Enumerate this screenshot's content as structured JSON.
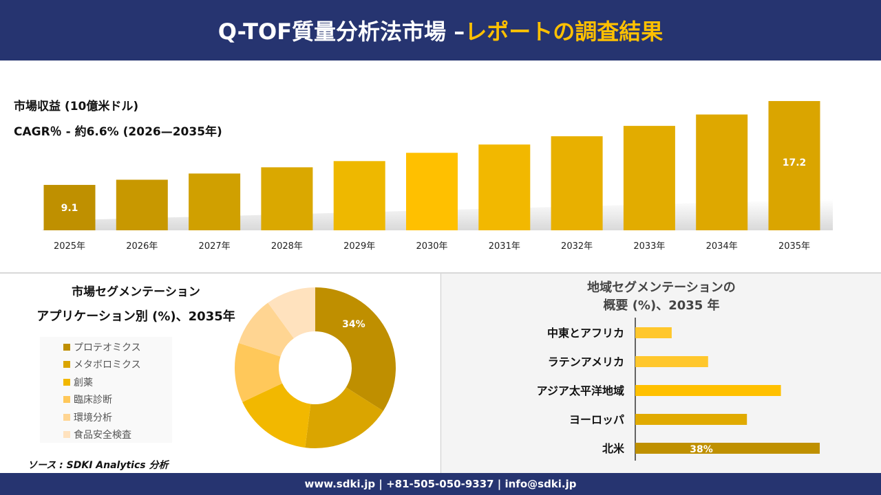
{
  "header": {
    "title_main": "Q-TOF質量分析法市場 –",
    "title_accent": "レポートの調査結果"
  },
  "revenue": {
    "label": "市場収益 (10億米ドル)",
    "cagr": "CAGR％ - 約6.6% (2026—2035年)"
  },
  "segment": {
    "title1": "市場セグメンテーション",
    "title2": "アプリケーション別 (%)、2035年"
  },
  "region": {
    "title1": "地域セグメンテーションの",
    "title2": "概要 (%)、2035 年"
  },
  "source": "ソース : SDKI Analytics 分析",
  "footer": "www.sdki.jp | +81-505-050-9337 | info@sdki.jp",
  "chart_data": [
    {
      "type": "bar",
      "categories": [
        "2025年",
        "2026年",
        "2027年",
        "2028年",
        "2029年",
        "2030年",
        "2031年",
        "2032年",
        "2033年",
        "2034年",
        "2035年"
      ],
      "values": [
        9.1,
        9.6,
        10.2,
        10.8,
        11.4,
        12.2,
        13.0,
        13.8,
        14.8,
        15.9,
        17.2
      ],
      "data_labels": {
        "0": "9.1",
        "10": "17.2"
      },
      "colors": [
        "#BF9000",
        "#C89800",
        "#D0A000",
        "#DAA800",
        "#EEB800",
        "#FFC000",
        "#F2B800",
        "#E8B000",
        "#E2AC00",
        "#DEA800",
        "#DAA500"
      ]
    },
    {
      "type": "pie",
      "donut": true,
      "labels": [
        "プロテオミクス",
        "メタボロミクス",
        "創薬",
        "臨床診断",
        "環境分析",
        "食品安全検査"
      ],
      "values": [
        34,
        18,
        16,
        12,
        10,
        10
      ],
      "data_labels": {
        "0": "34%"
      },
      "colors": [
        "#BF8F00",
        "#DAA500",
        "#F2B800",
        "#FFC85A",
        "#FFD592",
        "#FFE2BE"
      ]
    },
    {
      "type": "bar",
      "orientation": "horizontal",
      "categories": [
        "中東とアフリカ",
        "ラテンアメリカ",
        "アジア太平洋地域",
        "ヨーロッパ",
        "北米"
      ],
      "values": [
        7.5,
        15,
        30,
        23,
        38
      ],
      "data_labels": {
        "4": "38%"
      },
      "colors": [
        "#FFC72C",
        "#FFC72C",
        "#FFC000",
        "#E0AA00",
        "#BF9000"
      ]
    }
  ]
}
